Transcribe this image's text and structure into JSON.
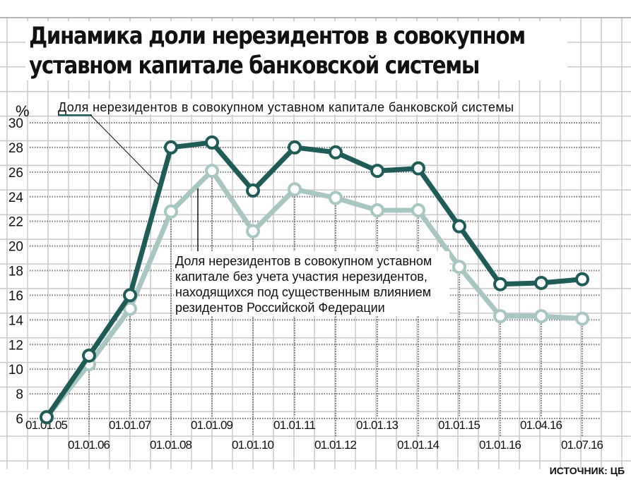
{
  "chart_data": {
    "type": "line",
    "title": "Динамика доли нерезидентов в совокупном уставном капитале банковской системы",
    "ylabel": "%",
    "ylim": [
      6,
      30
    ],
    "yticks": [
      6,
      8,
      10,
      12,
      14,
      16,
      18,
      20,
      22,
      24,
      26,
      28,
      30
    ],
    "grid": true,
    "categories": [
      "01.01.05",
      "01.01.06",
      "01.01.07",
      "01.01.08",
      "01.01.09",
      "01.01.10",
      "01.01.11",
      "01.01.12",
      "01.01.13",
      "01.01.14",
      "01.01.15",
      "01.01.16",
      "01.04.16",
      "01.07.16"
    ],
    "series": [
      {
        "name": "Доля нерезидентов в совокупном уставном капитале банковской системы",
        "color": "#1f5c58",
        "values": [
          6.1,
          11.1,
          16.0,
          28.0,
          28.4,
          24.5,
          28.0,
          27.6,
          26.1,
          26.3,
          21.6,
          16.9,
          17.0,
          17.3
        ]
      },
      {
        "name": "Доля нерезидентов в совокупном уставном капитале без учета участия нерезидентов, находящихся под существенным влиянием резидентов Российской Федерации",
        "color": "#a8c6c2",
        "name_lines": [
          "Доля нерезидентов в совокупном уставном",
          "капитале без учета участия нерезидентов,",
          "находящихся под существенным влиянием",
          "резидентов Российской Федерации"
        ],
        "values": [
          6.1,
          10.4,
          14.9,
          22.8,
          26.1,
          21.2,
          24.6,
          23.9,
          22.9,
          22.9,
          18.3,
          14.3,
          14.3,
          14.1
        ]
      }
    ],
    "source": "ИСТОЧНИК: ЦБ"
  }
}
